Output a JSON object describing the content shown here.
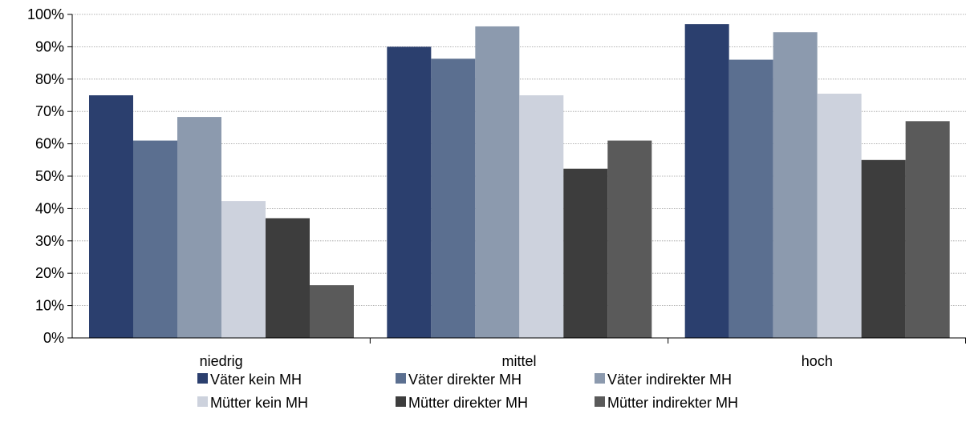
{
  "chart_data": {
    "type": "bar",
    "categories": [
      "niedrig",
      "mittel",
      "hoch"
    ],
    "series": [
      {
        "name": "Väter kein MH",
        "color": "#2b3f6e",
        "values": [
          75,
          90,
          97
        ]
      },
      {
        "name": "Väter direkter MH",
        "color": "#5b6f90",
        "values": [
          61,
          86.3,
          86
        ]
      },
      {
        "name": "Väter indirekter MH",
        "color": "#8c9aae",
        "values": [
          68.3,
          96.3,
          94.5
        ]
      },
      {
        "name": "Mütter kein MH",
        "color": "#cdd2dd",
        "values": [
          42.3,
          75,
          75.5
        ]
      },
      {
        "name": "Mütter direkter MH",
        "color": "#3d3d3d",
        "values": [
          37,
          52.3,
          55
        ]
      },
      {
        "name": "Mütter indirekter MH",
        "color": "#5a5a5a",
        "values": [
          16.3,
          61,
          67
        ]
      }
    ],
    "ylim": [
      0,
      100
    ],
    "yticks": [
      "0%",
      "10%",
      "20%",
      "30%",
      "40%",
      "50%",
      "60%",
      "70%",
      "80%",
      "90%",
      "100%"
    ],
    "grid": true,
    "legend_position": "bottom"
  }
}
